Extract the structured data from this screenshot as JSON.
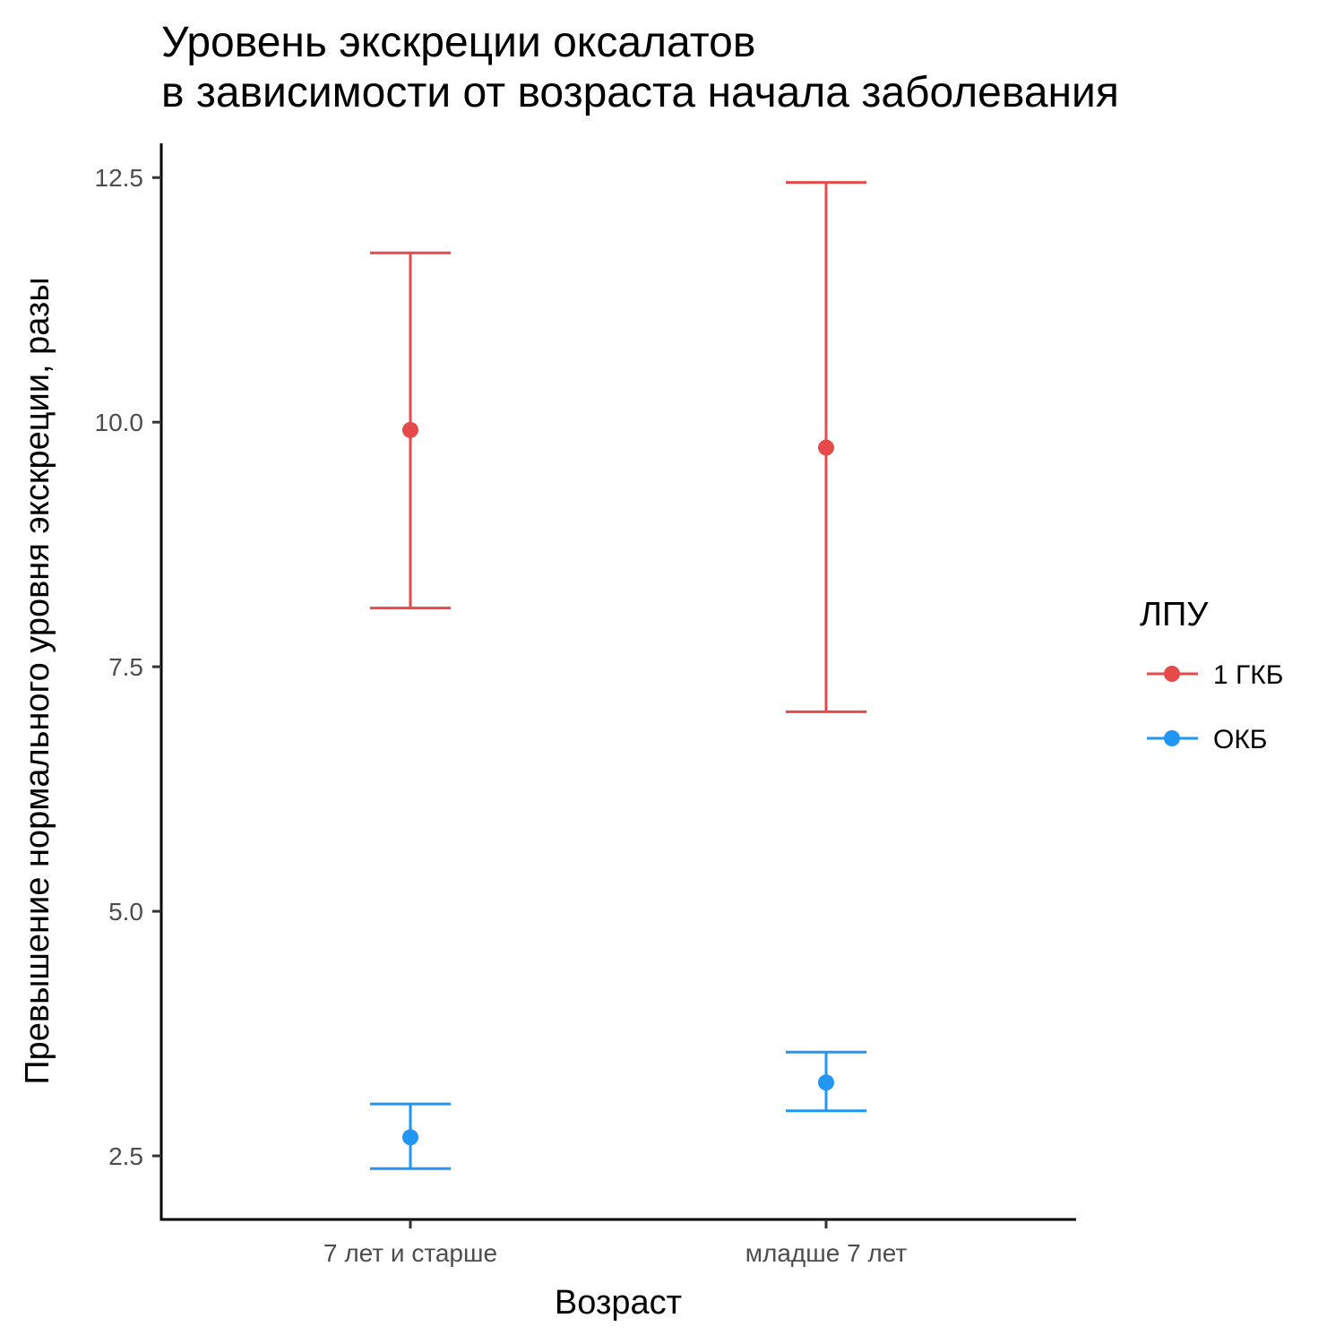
{
  "chart_data": {
    "type": "errorbar",
    "title_line1": "Уровень экскреции оксалатов",
    "title_line2": "в зависимости от возраста начала заболевания",
    "xlabel": "Возраст",
    "ylabel": "Превышение нормального уровня экскреции, разы",
    "categories": [
      "7 лет и старше",
      "младше 7 лет"
    ],
    "ylim": [
      1.85,
      12.85
    ],
    "yticks": [
      2.5,
      5.0,
      7.5,
      10.0,
      12.5
    ],
    "ytick_labels": [
      "2.5",
      "5.0",
      "7.5",
      "10.0",
      "12.5"
    ],
    "legend_title": "ЛПУ",
    "legend_position": "right",
    "grid": false,
    "series": [
      {
        "name": "1 ГКБ",
        "color": "#E64B4B",
        "mean": [
          9.92,
          9.74
        ],
        "lower": [
          8.1,
          7.04
        ],
        "upper": [
          11.73,
          12.45
        ]
      },
      {
        "name": "ОКБ",
        "color": "#2196F3",
        "mean": [
          2.69,
          3.25
        ],
        "lower": [
          2.37,
          2.96
        ],
        "upper": [
          3.03,
          3.56
        ]
      }
    ]
  }
}
